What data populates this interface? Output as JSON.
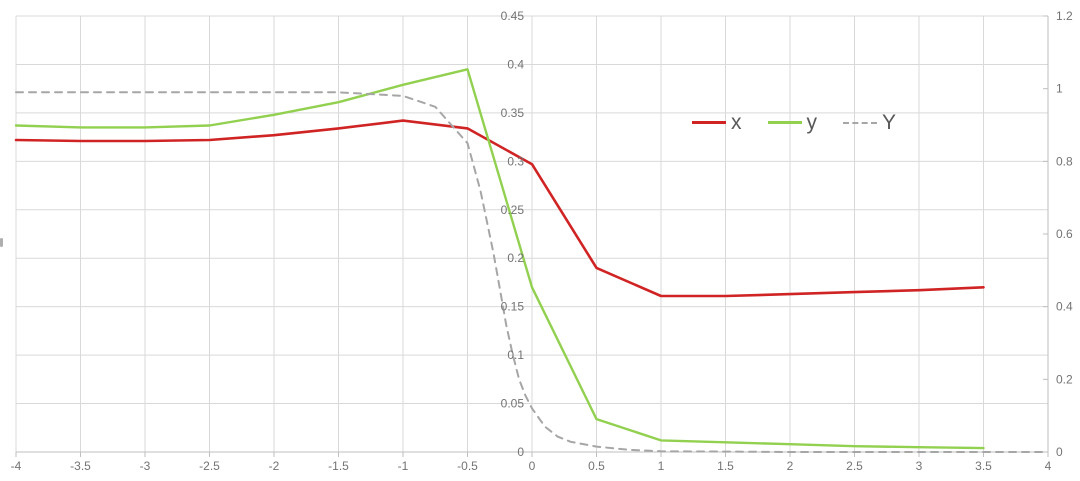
{
  "chart_data": {
    "type": "line",
    "title": "",
    "xlabel": "",
    "ylabel_left": "",
    "ylabel_right": "",
    "grid": true,
    "legend_position": "top-center-inside",
    "x_axis": {
      "min": -4,
      "max": 4,
      "tick_step": 0.5,
      "tick_labels": [
        "-4",
        "-3.5",
        "-3",
        "-2.5",
        "-2",
        "-1.5",
        "-1",
        "-0.5",
        "0",
        "0.5",
        "1",
        "1.5",
        "2",
        "2.5",
        "3",
        "3.5",
        "4"
      ],
      "tick_values": [
        -4,
        -3.5,
        -3,
        -2.5,
        -2,
        -1.5,
        -1,
        -0.5,
        0,
        0.5,
        1,
        1.5,
        2,
        2.5,
        3,
        3.5,
        4
      ]
    },
    "y_axis_left": {
      "min": 0,
      "max": 0.45,
      "tick_step": 0.05,
      "tick_labels": [
        "0",
        "0.05",
        "0.1",
        "0.15",
        "0.2",
        "0.25",
        "0.3",
        "0.35",
        "0.4",
        "0.45"
      ],
      "tick_values": [
        0,
        0.05,
        0.1,
        0.15,
        0.2,
        0.25,
        0.3,
        0.35,
        0.4,
        0.45
      ],
      "crosses_at_x": 0
    },
    "y_axis_right": {
      "min": 0,
      "max": 1.2,
      "tick_step": 0.2,
      "tick_labels": [
        "0",
        "0.2",
        "0.4",
        "0.6",
        "0.8",
        "1",
        "1.2"
      ],
      "tick_values": [
        0,
        0.2,
        0.4,
        0.6,
        0.8,
        1,
        1.2
      ]
    },
    "series": [
      {
        "name": "x",
        "axis": "left",
        "style": "solid",
        "color": "#d02424",
        "width": 2.6,
        "x": [
          -4,
          -3.5,
          -3,
          -2.5,
          -2,
          -1.5,
          -1,
          -0.5,
          0,
          0.5,
          1,
          1.5,
          2,
          2.5,
          3,
          3.5
        ],
        "values": [
          0.322,
          0.321,
          0.321,
          0.322,
          0.327,
          0.334,
          0.342,
          0.334,
          0.297,
          0.19,
          0.161,
          0.161,
          0.163,
          0.165,
          0.167,
          0.17
        ]
      },
      {
        "name": "y",
        "axis": "left",
        "style": "solid",
        "color": "#92d050",
        "width": 2.4,
        "x": [
          -4,
          -3.5,
          -3,
          -2.5,
          -2,
          -1.5,
          -1,
          -0.5,
          0,
          0.5,
          1,
          1.5,
          2,
          2.5,
          3,
          3.5
        ],
        "values": [
          0.337,
          0.335,
          0.335,
          0.337,
          0.348,
          0.361,
          0.379,
          0.395,
          0.17,
          0.034,
          0.012,
          0.01,
          0.008,
          0.006,
          0.005,
          0.004
        ]
      },
      {
        "name": "Y",
        "axis": "right",
        "style": "dashed",
        "color": "#a6a6a6",
        "width": 2,
        "x": [
          -4,
          -3.5,
          -3,
          -2.5,
          -2,
          -1.5,
          -1,
          -0.75,
          -0.5,
          -0.4,
          -0.3,
          -0.25,
          -0.2,
          -0.15,
          -0.1,
          -0.05,
          0,
          0.1,
          0.2,
          0.3,
          0.5,
          0.75,
          1,
          1.5,
          2,
          2.5,
          3,
          3.5,
          4
        ],
        "values": [
          0.99,
          0.99,
          0.99,
          0.99,
          0.99,
          0.99,
          0.98,
          0.95,
          0.85,
          0.72,
          0.55,
          0.45,
          0.35,
          0.27,
          0.2,
          0.155,
          0.12,
          0.07,
          0.042,
          0.028,
          0.015,
          0.006,
          0.002,
          0.001,
          0,
          0,
          0,
          0,
          0
        ]
      }
    ],
    "colors": {
      "gridline": "#d9d9d9",
      "axis_line": "#bfbfbf",
      "tick_label": "#737373",
      "legend_text": "#595959",
      "background": "#ffffff"
    }
  }
}
